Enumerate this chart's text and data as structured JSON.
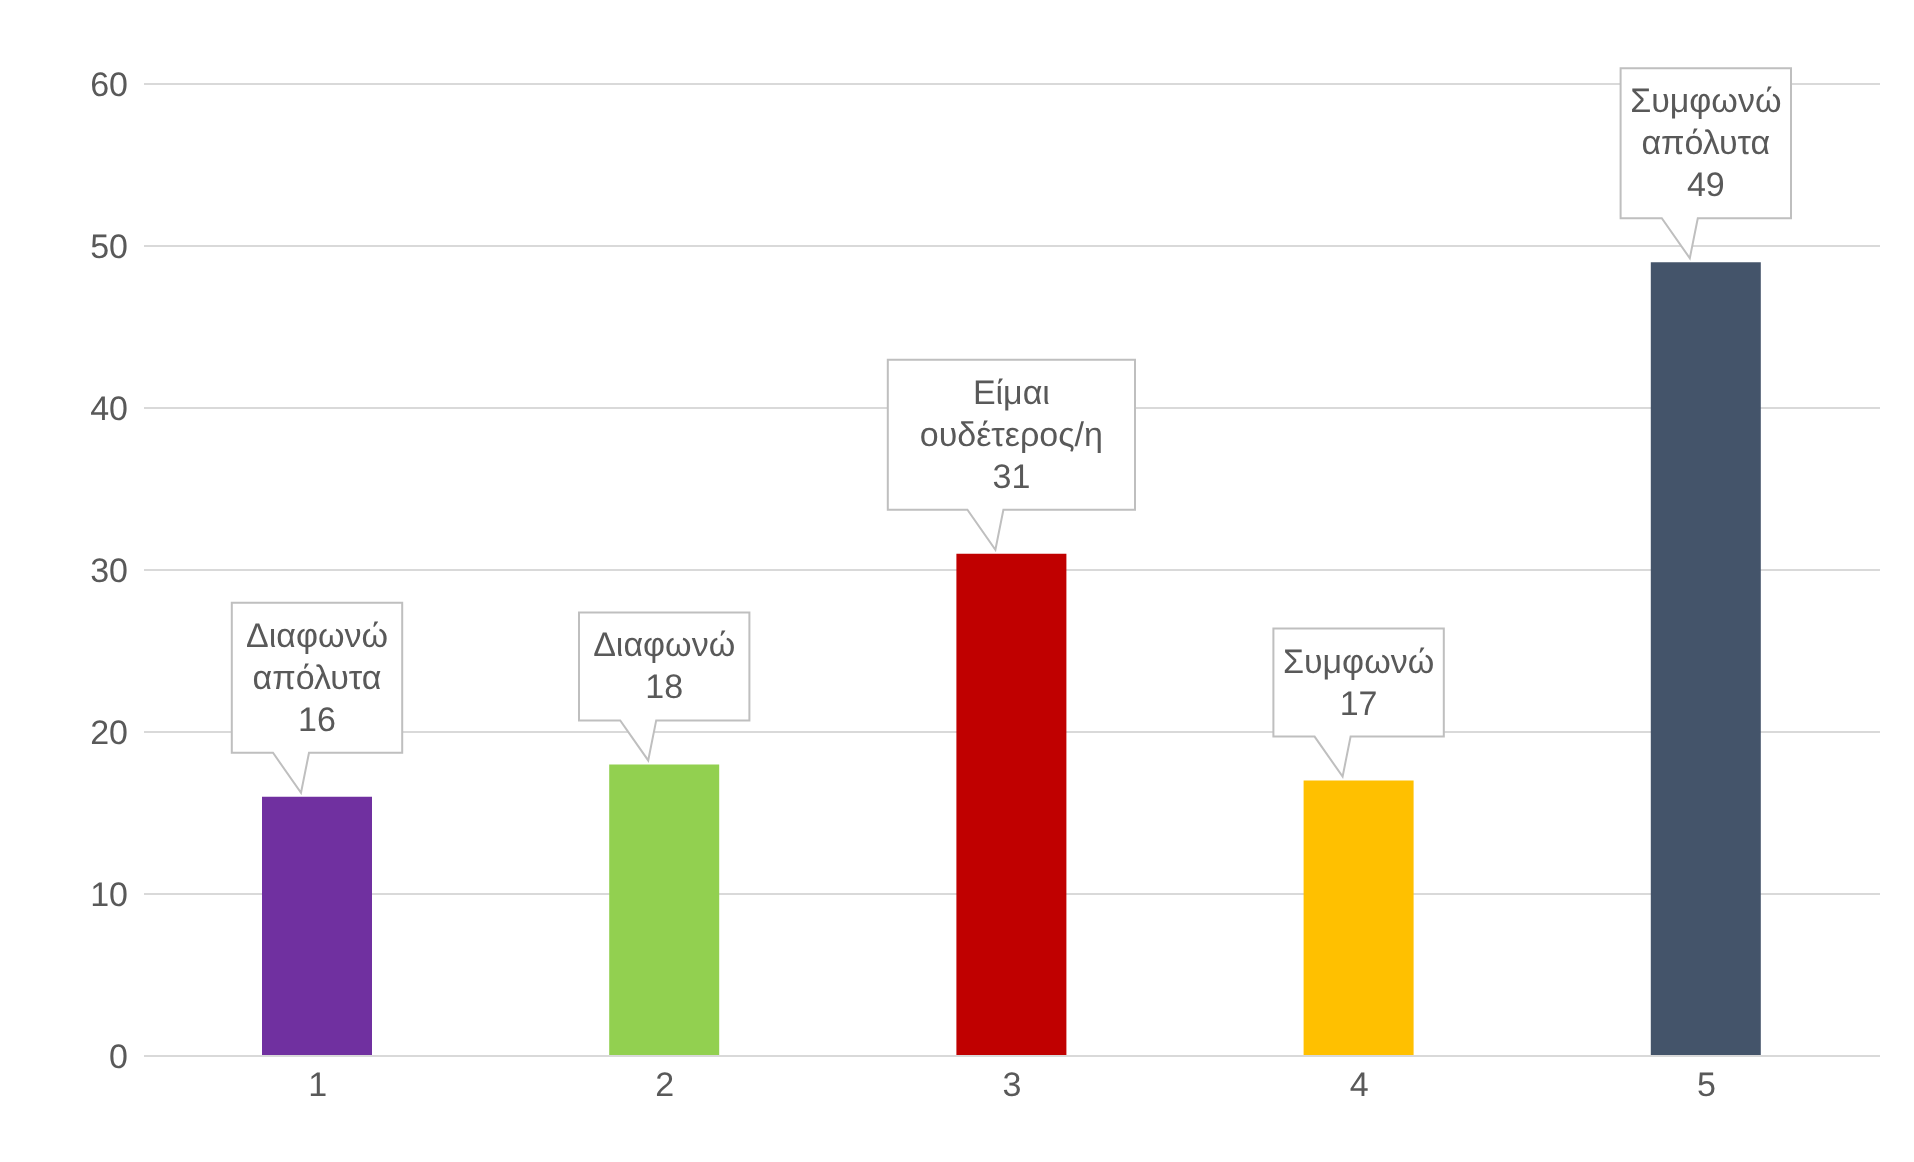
{
  "chart_data": {
    "type": "bar",
    "categories": [
      "1",
      "2",
      "3",
      "4",
      "5"
    ],
    "values": [
      16,
      18,
      31,
      17,
      49
    ],
    "colors": [
      "#7030a0",
      "#92d050",
      "#c00000",
      "#ffc000",
      "#44546a"
    ],
    "ylim": [
      0,
      60
    ],
    "yticks": [
      0,
      10,
      20,
      30,
      40,
      50,
      60
    ],
    "grid": "y",
    "data_labels": true,
    "annotations": [
      {
        "text": "Διαφωνώ απόλυτα",
        "x": "1",
        "y": 16
      },
      {
        "text": "Διαφωνώ",
        "x": "2",
        "y": 18
      },
      {
        "text": "Είμαι ουδέτερος/η",
        "x": "3",
        "y": 31
      },
      {
        "text": "Συμφωνώ",
        "x": "4",
        "y": 17
      },
      {
        "text": "Συμφωνώ απόλυτα",
        "x": "5",
        "y": 49
      }
    ]
  }
}
